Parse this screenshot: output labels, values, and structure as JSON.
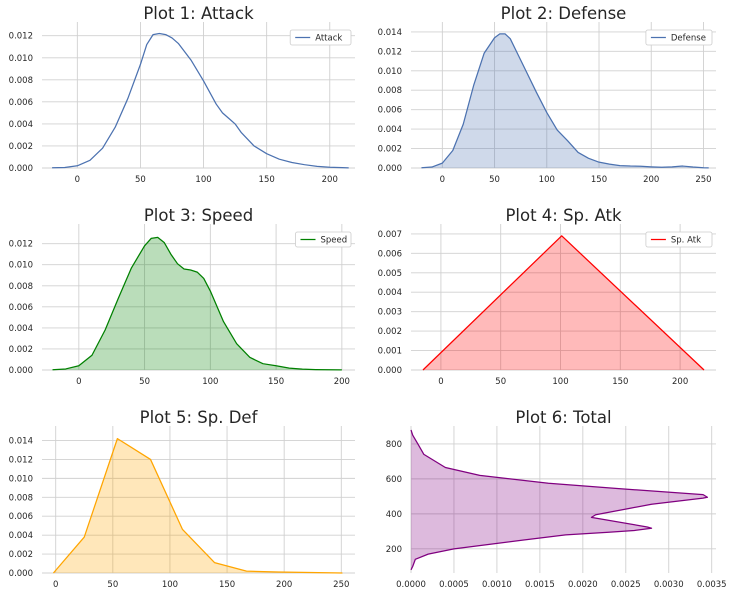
{
  "figure": {
    "background": "#ffffff",
    "grid_color": "#d0d0d0"
  },
  "chart_data": [
    {
      "type": "area",
      "title": "Plot 1: Attack",
      "legend": {
        "label": "Attack",
        "position": "top-right"
      },
      "color": "#4c72b0",
      "filled": false,
      "orientation": "vertical",
      "xlim": [
        -28,
        220
      ],
      "ylim": [
        0,
        0.0127
      ],
      "xticks": [
        0,
        50,
        100,
        150,
        200
      ],
      "yticks": [
        0.0,
        0.002,
        0.004,
        0.006,
        0.008,
        0.01,
        0.012
      ],
      "ytick_labels": [
        "0.000",
        "0.002",
        "0.004",
        "0.006",
        "0.008",
        "0.010",
        "0.012"
      ],
      "grid": true,
      "x": [
        -20,
        -10,
        0,
        10,
        20,
        30,
        40,
        50,
        55,
        60,
        65,
        70,
        75,
        80,
        90,
        100,
        110,
        115,
        120,
        125,
        130,
        140,
        150,
        160,
        170,
        180,
        190,
        200,
        210,
        215
      ],
      "y": [
        2e-05,
        5e-05,
        0.0002,
        0.0007,
        0.0018,
        0.0037,
        0.0063,
        0.0094,
        0.0112,
        0.0121,
        0.0122,
        0.0121,
        0.0118,
        0.0113,
        0.0098,
        0.0079,
        0.0058,
        0.005,
        0.0045,
        0.004,
        0.0032,
        0.002,
        0.0013,
        0.0008,
        0.0005,
        0.0003,
        0.00015,
        7e-05,
        3e-05,
        1e-05
      ]
    },
    {
      "type": "area",
      "title": "Plot 2: Defense",
      "legend": {
        "label": "Defense",
        "position": "top-right"
      },
      "color": "#4c72b0",
      "filled": true,
      "orientation": "vertical",
      "xlim": [
        -30,
        262
      ],
      "ylim": [
        0,
        0.0144
      ],
      "xticks": [
        0,
        50,
        100,
        150,
        200,
        250
      ],
      "yticks": [
        0.0,
        0.002,
        0.004,
        0.006,
        0.008,
        0.01,
        0.012,
        0.014
      ],
      "ytick_labels": [
        "0.000",
        "0.002",
        "0.004",
        "0.006",
        "0.008",
        "0.010",
        "0.012",
        "0.014"
      ],
      "grid": true,
      "x": [
        -20,
        -10,
        0,
        10,
        20,
        30,
        40,
        50,
        55,
        60,
        65,
        70,
        80,
        90,
        100,
        110,
        120,
        130,
        140,
        150,
        160,
        170,
        180,
        190,
        200,
        210,
        220,
        230,
        240,
        250,
        255
      ],
      "y": [
        2e-05,
        0.0001,
        0.0005,
        0.0018,
        0.0045,
        0.0085,
        0.0118,
        0.0134,
        0.0138,
        0.0138,
        0.0133,
        0.0122,
        0.01,
        0.0078,
        0.0057,
        0.0039,
        0.0028,
        0.0016,
        0.001,
        0.0006,
        0.0004,
        0.00025,
        0.0002,
        0.00018,
        0.00012,
        8e-05,
        0.00012,
        0.0002,
        0.0001,
        3e-05,
        1e-05
      ]
    },
    {
      "type": "area",
      "title": "Plot 3: Speed",
      "legend": {
        "label": "Speed",
        "position": "top-right"
      },
      "color": "#008000",
      "filled": true,
      "orientation": "vertical",
      "xlim": [
        -28,
        210
      ],
      "ylim": [
        0,
        0.0133
      ],
      "xticks": [
        0,
        50,
        100,
        150,
        200
      ],
      "yticks": [
        0.0,
        0.002,
        0.004,
        0.006,
        0.008,
        0.01,
        0.012
      ],
      "ytick_labels": [
        "0.000",
        "0.002",
        "0.004",
        "0.006",
        "0.008",
        "0.010",
        "0.012"
      ],
      "grid": true,
      "x": [
        -20,
        -10,
        0,
        10,
        20,
        30,
        40,
        50,
        55,
        60,
        65,
        70,
        75,
        80,
        85,
        90,
        95,
        100,
        110,
        120,
        130,
        140,
        150,
        160,
        170,
        180,
        190,
        200
      ],
      "y": [
        2e-05,
        0.0001,
        0.0004,
        0.0014,
        0.0038,
        0.0068,
        0.0097,
        0.0118,
        0.0125,
        0.0126,
        0.0121,
        0.011,
        0.0101,
        0.0096,
        0.0095,
        0.0093,
        0.0087,
        0.0075,
        0.0046,
        0.0025,
        0.0012,
        0.0006,
        0.0004,
        0.00018,
        8e-05,
        4e-05,
        2e-05,
        1e-05
      ]
    },
    {
      "type": "area",
      "title": "Plot 4: Sp. Atk",
      "legend": {
        "label": "Sp. Atk",
        "position": "top-right"
      },
      "color": "#ff0000",
      "filled": true,
      "orientation": "vertical",
      "xlim": [
        -25,
        230
      ],
      "ylim": [
        0,
        0.0072
      ],
      "xticks": [
        0,
        50,
        100,
        150,
        200
      ],
      "yticks": [
        0.0,
        0.001,
        0.002,
        0.003,
        0.004,
        0.005,
        0.006,
        0.007
      ],
      "ytick_labels": [
        "0.000",
        "0.001",
        "0.002",
        "0.003",
        "0.004",
        "0.005",
        "0.006",
        "0.007"
      ],
      "grid": true,
      "x": [
        -15,
        101,
        220
      ],
      "y": [
        0.0,
        0.0069,
        0.0
      ]
    },
    {
      "type": "area",
      "title": "Plot 5: Sp. Def",
      "legend": null,
      "color": "#ffa500",
      "filled": true,
      "orientation": "vertical",
      "xlim": [
        -12,
        262
      ],
      "ylim": [
        0,
        0.0149
      ],
      "xticks": [
        0,
        50,
        100,
        150,
        200,
        250
      ],
      "yticks": [
        0.0,
        0.002,
        0.004,
        0.006,
        0.008,
        0.01,
        0.012,
        0.014
      ],
      "ytick_labels": [
        "0.000",
        "0.002",
        "0.004",
        "0.006",
        "0.008",
        "0.010",
        "0.012",
        "0.014"
      ],
      "grid": true,
      "x": [
        -2,
        25,
        54,
        83,
        111,
        139,
        167,
        195,
        223,
        251
      ],
      "y": [
        0.0,
        0.0038,
        0.0142,
        0.012,
        0.0046,
        0.0011,
        0.0002,
        0.0001,
        5e-05,
        0.0
      ]
    },
    {
      "type": "area",
      "title": "Plot 6: Total",
      "legend": null,
      "color": "#800080",
      "filled": true,
      "orientation": "horizontal",
      "xlim": [
        0,
        0.00355
      ],
      "ylim": [
        62,
        868
      ],
      "xticks": [
        0.0,
        0.0005,
        0.001,
        0.0015,
        0.002,
        0.0025,
        0.003,
        0.0035
      ],
      "xtick_labels": [
        "0.0000",
        "0.0005",
        "0.0010",
        "0.0015",
        "0.0020",
        "0.0025",
        "0.0030",
        "0.0035"
      ],
      "yticks": [
        200,
        400,
        600,
        800
      ],
      "grid": true,
      "x": [
        0.0,
        2e-05,
        5e-05,
        0.0002,
        0.0005,
        0.0009,
        0.0013,
        0.0018,
        0.0023,
        0.0026,
        0.0028,
        0.00275,
        0.0021,
        0.00215,
        0.0028,
        0.0034,
        0.00345,
        0.0034,
        0.0024,
        0.0016,
        0.0008,
        0.0004,
        0.00015,
        8e-05,
        2e-05,
        0.0
      ],
      "y": [
        80,
        100,
        140,
        170,
        200,
        225,
        250,
        280,
        295,
        305,
        318,
        325,
        380,
        395,
        455,
        490,
        495,
        510,
        545,
        575,
        620,
        665,
        740,
        800,
        850,
        880
      ]
    }
  ]
}
